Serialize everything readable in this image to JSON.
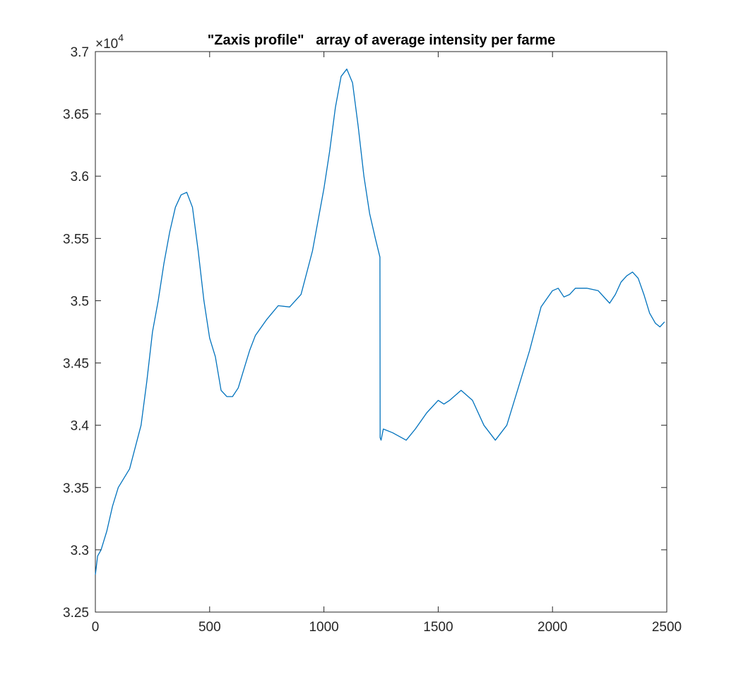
{
  "chart_data": {
    "type": "line",
    "title": "\"Zaxis profile\"   array of average intensity per farme",
    "xlabel": "",
    "ylabel": "",
    "xlim": [
      0,
      2500
    ],
    "ylim": [
      32500,
      37000
    ],
    "xticks": [
      0,
      500,
      1000,
      1500,
      2000,
      2500
    ],
    "xtick_labels": [
      "0",
      "500",
      "1000",
      "1500",
      "2000",
      "2500"
    ],
    "yticks": [
      32500,
      33000,
      33500,
      34000,
      34500,
      35000,
      35500,
      36000,
      36500,
      37000
    ],
    "ytick_labels": [
      "3.25",
      "3.3",
      "3.35",
      "3.4",
      "3.45",
      "3.5",
      "3.55",
      "3.6",
      "3.65",
      "3.7"
    ],
    "y_exponent": {
      "base": "×10",
      "power": "4"
    },
    "grid": false,
    "line_color": "#0072BD",
    "series": [
      {
        "x": [
          0,
          10,
          25,
          50,
          75,
          100,
          150,
          200,
          225,
          250,
          275,
          300,
          325,
          350,
          375,
          400,
          425,
          450,
          475,
          500,
          525,
          550,
          575,
          600,
          625,
          650,
          675,
          700,
          750,
          800,
          850,
          900,
          950,
          1000,
          1025,
          1050,
          1075,
          1100,
          1125,
          1150,
          1175,
          1200,
          1225,
          1245,
          1246,
          1250,
          1260,
          1300,
          1360,
          1400,
          1450,
          1500,
          1525,
          1550,
          1600,
          1650,
          1700,
          1750,
          1800,
          1850,
          1900,
          1950,
          2000,
          2025,
          2050,
          2075,
          2100,
          2150,
          2200,
          2250,
          2275,
          2300,
          2325,
          2350,
          2375,
          2400,
          2425,
          2450,
          2470,
          2490
        ],
        "y": [
          32800,
          32950,
          33000,
          33150,
          33350,
          33500,
          33650,
          34000,
          34350,
          34750,
          35000,
          35300,
          35550,
          35750,
          35850,
          35870,
          35750,
          35400,
          35000,
          34700,
          34550,
          34280,
          34230,
          34230,
          34300,
          34450,
          34600,
          34720,
          34850,
          34960,
          34950,
          35050,
          35400,
          35900,
          36200,
          36550,
          36800,
          36860,
          36750,
          36400,
          36000,
          35700,
          35500,
          35350,
          33900,
          33880,
          33970,
          33940,
          33880,
          33970,
          34100,
          34200,
          34170,
          34200,
          34280,
          34200,
          34000,
          33880,
          34000,
          34300,
          34600,
          34950,
          35080,
          35100,
          35030,
          35050,
          35100,
          35100,
          35080,
          34980,
          35050,
          35150,
          35200,
          35230,
          35180,
          35050,
          34900,
          34820,
          34790,
          34830
        ]
      }
    ]
  }
}
